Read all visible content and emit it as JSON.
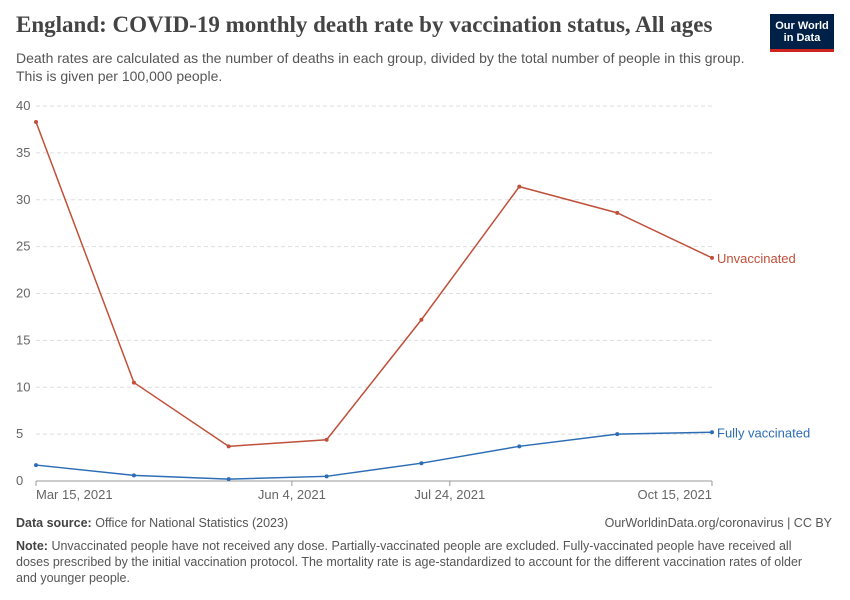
{
  "logo": [
    "Our World",
    "in Data"
  ],
  "chart_data": {
    "type": "line",
    "title": "England: COVID-19 monthly death rate by vaccination status, All ages",
    "subtitle": "Death rates are calculated as the number of deaths in each group, divided by the total number of people in this group. This is given per 100,000 people.",
    "x": [
      "2021-03-15",
      "2021-04-15",
      "2021-05-15",
      "2021-06-15",
      "2021-07-15",
      "2021-08-15",
      "2021-09-15",
      "2021-10-15"
    ],
    "series": [
      {
        "name": "Unvaccinated",
        "color": "#c0503a",
        "values": [
          38.3,
          10.5,
          3.7,
          4.4,
          17.2,
          31.4,
          28.6,
          23.8
        ]
      },
      {
        "name": "Fully vaccinated",
        "color": "#2c6db5",
        "values": [
          1.7,
          0.6,
          0.2,
          0.5,
          1.9,
          3.7,
          5.0,
          5.2
        ]
      }
    ],
    "xlim": [
      "2021-03-15",
      "2021-10-15"
    ],
    "xticks": [
      {
        "value": "2021-03-15",
        "label": "Mar 15, 2021"
      },
      {
        "value": "2021-06-04",
        "label": "Jun 4, 2021"
      },
      {
        "value": "2021-07-24",
        "label": "Jul 24, 2021"
      },
      {
        "value": "2021-10-15",
        "label": "Oct 15, 2021"
      }
    ],
    "ylim": [
      0,
      40
    ],
    "yticks": [
      0,
      5,
      10,
      15,
      20,
      25,
      30,
      35,
      40
    ],
    "grid": true,
    "source_label": "Data source:",
    "source": "Office for National Statistics (2023)",
    "url": "OurWorldinData.org/coronavirus | CC BY",
    "note_label": "Note:",
    "note": "Unvaccinated people have not received any dose. Partially-vaccinated people are excluded. Fully-vaccinated people have received all doses prescribed by the initial vaccination protocol. The mortality rate is age-standardized to account for the different vaccination rates of older and younger people."
  }
}
